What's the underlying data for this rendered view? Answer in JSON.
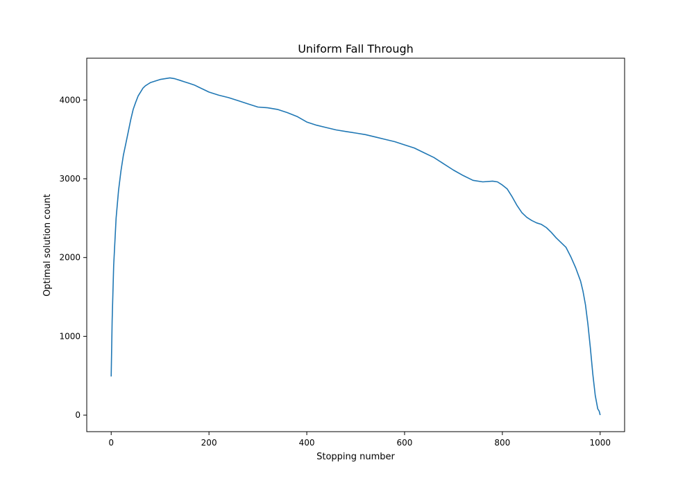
{
  "chart_data": {
    "type": "line",
    "title": "Uniform Fall Through",
    "xlabel": "Stopping number",
    "ylabel": "Optimal solution count",
    "xlim": [
      -50,
      1050
    ],
    "ylim": [
      -210,
      4530
    ],
    "xticks": [
      0,
      200,
      400,
      600,
      800,
      1000
    ],
    "yticks": [
      0,
      1000,
      2000,
      3000,
      4000
    ],
    "grid": false,
    "series": [
      {
        "color": "#1f77b4",
        "x": [
          0,
          2,
          5,
          10,
          15,
          20,
          25,
          30,
          35,
          40,
          45,
          50,
          55,
          60,
          65,
          70,
          75,
          80,
          90,
          100,
          110,
          120,
          130,
          140,
          150,
          160,
          170,
          180,
          190,
          200,
          220,
          240,
          260,
          280,
          300,
          320,
          340,
          360,
          380,
          400,
          420,
          440,
          460,
          480,
          500,
          520,
          540,
          560,
          580,
          600,
          620,
          640,
          660,
          680,
          700,
          720,
          740,
          760,
          780,
          790,
          800,
          810,
          820,
          830,
          840,
          850,
          860,
          870,
          880,
          890,
          900,
          910,
          920,
          930,
          940,
          950,
          960,
          965,
          970,
          975,
          980,
          985,
          990,
          995,
          998,
          1000
        ],
        "y": [
          490,
          1200,
          1900,
          2500,
          2850,
          3100,
          3300,
          3450,
          3600,
          3750,
          3880,
          3970,
          4050,
          4100,
          4150,
          4180,
          4200,
          4220,
          4240,
          4260,
          4270,
          4280,
          4270,
          4250,
          4230,
          4210,
          4190,
          4160,
          4130,
          4100,
          4060,
          4030,
          3990,
          3950,
          3910,
          3900,
          3880,
          3840,
          3790,
          3720,
          3680,
          3650,
          3620,
          3600,
          3580,
          3560,
          3530,
          3500,
          3470,
          3430,
          3390,
          3330,
          3270,
          3190,
          3110,
          3040,
          2980,
          2960,
          2970,
          2960,
          2920,
          2870,
          2770,
          2660,
          2570,
          2510,
          2470,
          2440,
          2420,
          2380,
          2320,
          2250,
          2190,
          2130,
          2010,
          1870,
          1700,
          1570,
          1400,
          1150,
          850,
          520,
          250,
          80,
          50,
          0
        ]
      }
    ]
  }
}
